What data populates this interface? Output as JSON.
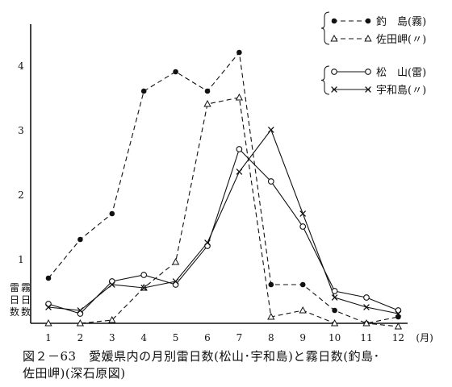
{
  "chart_data": {
    "type": "line",
    "categories": [
      "1",
      "2",
      "3",
      "4",
      "5",
      "6",
      "7",
      "8",
      "9",
      "10",
      "11",
      "12"
    ],
    "x_unit": "(月)",
    "ylabel": "雷霧日日数数",
    "ylabel_lines": [
      "雷",
      "日",
      "数"
    ],
    "ylabel_lines_right": [
      "霧",
      "日",
      "数"
    ],
    "yticks": [
      "1",
      "2",
      "3",
      "4"
    ],
    "ylim": [
      0,
      4.3
    ],
    "grid": false,
    "legend_position": "top-right",
    "series": [
      {
        "name": "釣　島(霧)",
        "values": [
          0.7,
          1.3,
          1.7,
          3.6,
          3.9,
          3.6,
          4.2,
          0.6,
          0.6,
          0.2,
          0.0,
          0.1
        ],
        "style": "dashed",
        "marker": "filled-circle",
        "group": "fog"
      },
      {
        "name": "佐田岬(〃)",
        "values": [
          0.0,
          0.0,
          0.05,
          0.55,
          0.95,
          3.4,
          3.5,
          0.1,
          0.2,
          0.0,
          0.0,
          -0.05
        ],
        "style": "dashed",
        "marker": "triangle",
        "group": "fog"
      },
      {
        "name": "松　山(雷)",
        "values": [
          0.3,
          0.15,
          0.65,
          0.75,
          0.6,
          1.2,
          2.7,
          2.2,
          1.5,
          0.5,
          0.4,
          0.2
        ],
        "style": "solid",
        "marker": "open-circle",
        "group": "thunder"
      },
      {
        "name": "宇和島(〃)",
        "values": [
          0.25,
          0.2,
          0.6,
          0.55,
          0.65,
          1.25,
          2.35,
          3.0,
          1.7,
          0.4,
          0.25,
          0.15
        ],
        "style": "solid",
        "marker": "cross",
        "group": "thunder"
      }
    ]
  },
  "caption": {
    "line1": "図２－63　愛媛県内の月別雷日数(松山･宇和島)と霧日数(釣島･",
    "line2": "佐田岬)(深石原図)"
  }
}
